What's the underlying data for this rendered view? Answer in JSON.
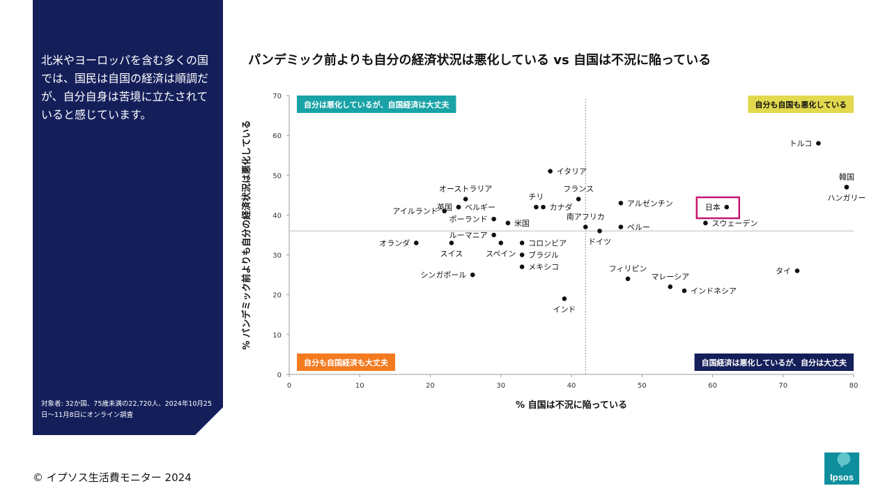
{
  "sidebar": {
    "description": "北米やヨーロッパを含む多くの国では、国民は自国の経済は順調だが、自分自身は苦境に立たされていると感じています。",
    "note": "対象者: 32か国、75歳未満の22,720人、2024年10月25日～11月8日にオンライン調査"
  },
  "footer": {
    "copyright": "© イプソス生活費モニター 2024"
  },
  "logo": {
    "text": "Ipsos",
    "color": "#0f8f9d"
  },
  "colors": {
    "navy": "#141f5a",
    "teal": "#1aa3a6",
    "yellow": "#e3d94f",
    "orange": "#f47a20",
    "highlight": "#c4166e"
  },
  "chart_data": {
    "type": "scatter",
    "title": "パンデミック前よりも自分の経済状況は悪化している vs 自国は不況に陥っている",
    "xlabel": "% 自国は不況に陥っている",
    "ylabel": "% パンデミック前よりも自分の経済状況は悪化している",
    "xlim": [
      0,
      80
    ],
    "ylim": [
      0,
      70
    ],
    "xticks": [
      0,
      10,
      20,
      30,
      40,
      50,
      60,
      70,
      80
    ],
    "yticks": [
      0,
      10,
      20,
      30,
      40,
      50,
      60,
      70
    ],
    "divider_x": 42,
    "divider_y": 36,
    "quadrants": [
      {
        "label": "自分は悪化しているが、自国経済は大丈夫",
        "position": "top-left",
        "color": "#1aa3a6"
      },
      {
        "label": "自分も自国も悪化している",
        "position": "top-right",
        "color": "#e3d94f"
      },
      {
        "label": "自分も自国経済も大丈夫",
        "position": "bottom-left",
        "color": "#f47a20"
      },
      {
        "label": "自国経済は悪化しているが、自分は大丈夫",
        "position": "bottom-right",
        "color": "#141f5a"
      }
    ],
    "points": [
      {
        "label": "トルコ",
        "x": 75,
        "y": 58,
        "label_side": "left"
      },
      {
        "label": "韓国",
        "x": 79,
        "y": 47,
        "label_side": "above"
      },
      {
        "label": "ハンガリー",
        "x": 79,
        "y": 47,
        "label_side": "below"
      },
      {
        "label": "日本",
        "x": 62,
        "y": 42,
        "label_side": "left",
        "highlight": true
      },
      {
        "label": "スウェーデン",
        "x": 59,
        "y": 38,
        "label_side": "right"
      },
      {
        "label": "アルゼンチン",
        "x": 47,
        "y": 43,
        "label_side": "right"
      },
      {
        "label": "ペルー",
        "x": 47,
        "y": 37,
        "label_side": "right"
      },
      {
        "label": "フランス",
        "x": 41,
        "y": 44,
        "label_side": "above"
      },
      {
        "label": "南アフリカ",
        "x": 42,
        "y": 37,
        "label_side": "above"
      },
      {
        "label": "ドイツ",
        "x": 44,
        "y": 36,
        "label_side": "below"
      },
      {
        "label": "イタリア",
        "x": 37,
        "y": 51,
        "label_side": "right"
      },
      {
        "label": "チリ",
        "x": 35,
        "y": 42,
        "label_side": "above"
      },
      {
        "label": "カナダ",
        "x": 36,
        "y": 42,
        "label_side": "right"
      },
      {
        "label": "米国",
        "x": 31,
        "y": 38,
        "label_side": "right"
      },
      {
        "label": "コロンビア",
        "x": 33,
        "y": 33,
        "label_side": "right"
      },
      {
        "label": "ブラジル",
        "x": 33,
        "y": 30,
        "label_side": "right"
      },
      {
        "label": "メキシコ",
        "x": 33,
        "y": 27,
        "label_side": "right"
      },
      {
        "label": "スペイン",
        "x": 30,
        "y": 33,
        "label_side": "below"
      },
      {
        "label": "ルーマニア",
        "x": 29,
        "y": 35,
        "label_side": "left"
      },
      {
        "label": "ポーランド",
        "x": 29,
        "y": 39,
        "label_side": "left"
      },
      {
        "label": "オーストラリア",
        "x": 25,
        "y": 44,
        "label_side": "above"
      },
      {
        "label": "英国",
        "x": 24,
        "y": 42,
        "label_side": "left"
      },
      {
        "label": "ベルギー",
        "x": 24,
        "y": 42,
        "label_side": "right"
      },
      {
        "label": "アイルランド",
        "x": 22,
        "y": 41,
        "label_side": "left"
      },
      {
        "label": "オランダ",
        "x": 18,
        "y": 33,
        "label_side": "left"
      },
      {
        "label": "スイス",
        "x": 23,
        "y": 33,
        "label_side": "below"
      },
      {
        "label": "シンガポール",
        "x": 26,
        "y": 25,
        "label_side": "left"
      },
      {
        "label": "インド",
        "x": 39,
        "y": 19,
        "label_side": "below"
      },
      {
        "label": "フィリピン",
        "x": 48,
        "y": 24,
        "label_side": "above"
      },
      {
        "label": "マレーシア",
        "x": 54,
        "y": 22,
        "label_side": "above"
      },
      {
        "label": "インドネシア",
        "x": 56,
        "y": 21,
        "label_side": "right"
      },
      {
        "label": "タイ",
        "x": 72,
        "y": 26,
        "label_side": "left"
      }
    ]
  }
}
